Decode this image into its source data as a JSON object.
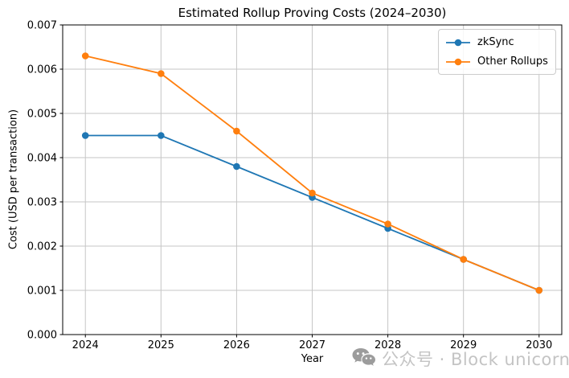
{
  "chart_data": {
    "type": "line",
    "title": "Estimated Rollup Proving Costs (2024–2030)",
    "xlabel": "Year",
    "ylabel": "Cost (USD per transaction)",
    "categories": [
      2024,
      2025,
      2026,
      2027,
      2028,
      2029,
      2030
    ],
    "series": [
      {
        "name": "zkSync",
        "color": "#1f77b4",
        "marker": "circle",
        "values": [
          0.0045,
          0.0045,
          0.0038,
          0.0031,
          0.0024,
          0.0017,
          0.001
        ]
      },
      {
        "name": "Other Rollups",
        "color": "#ff7f0e",
        "marker": "circle",
        "values": [
          0.0063,
          0.0059,
          0.0046,
          0.0032,
          0.0025,
          0.0017,
          0.001
        ]
      }
    ],
    "xlim": [
      2023.7,
      2030.3
    ],
    "ylim": [
      0,
      0.007
    ],
    "ytick_step": 0.001,
    "ytick_decimals": 3,
    "grid": true,
    "legend_position": "upper right"
  },
  "watermark": {
    "icon": "wechat-icon",
    "text": "公众号 · Block unicorn"
  },
  "colors": {
    "grid": "#c6c6c6",
    "spine": "#000000",
    "background": "#ffffff",
    "watermark_text": "#c4c4c4",
    "watermark_icon": "#9c9c9c"
  }
}
